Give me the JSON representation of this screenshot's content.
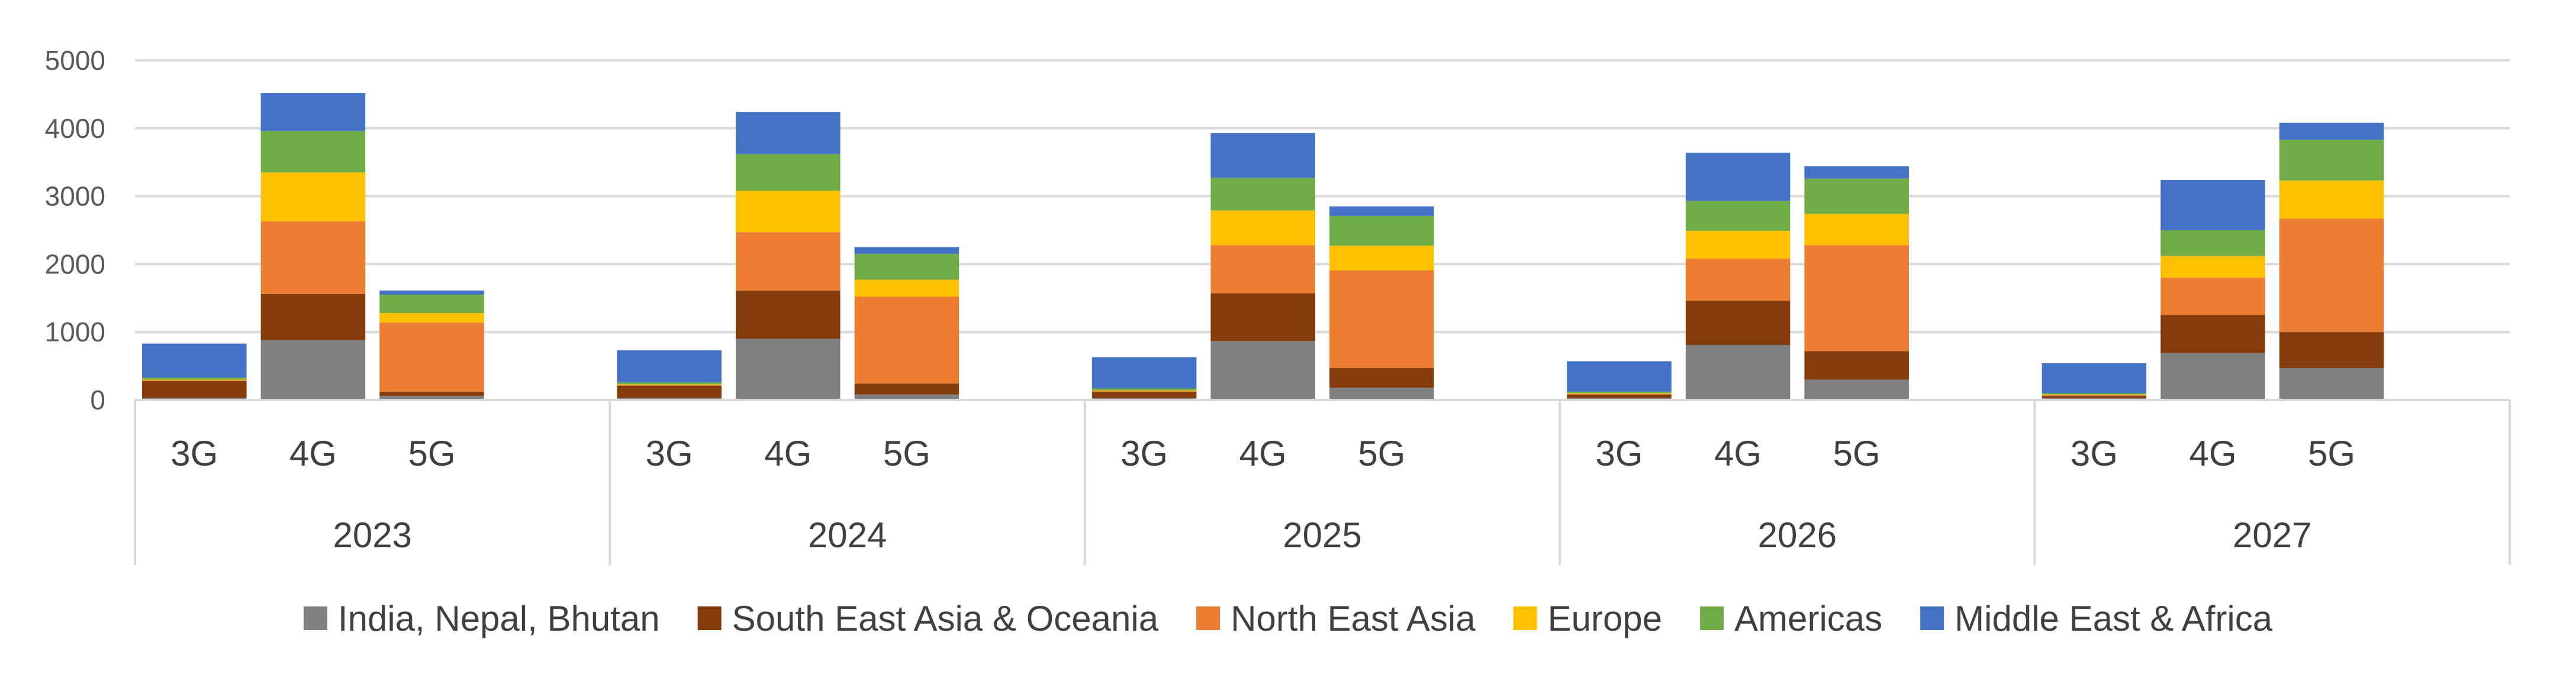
{
  "chart_data": {
    "type": "bar",
    "stacked": true,
    "title": "",
    "xlabel": "",
    "ylabel": "",
    "ylim": [
      0,
      5000
    ],
    "yticks": [
      0,
      1000,
      2000,
      3000,
      4000,
      5000
    ],
    "grid": true,
    "legend_position": "bottom",
    "groups": [
      "2023",
      "2024",
      "2025",
      "2026",
      "2027"
    ],
    "subcategories": [
      "3G",
      "4G",
      "5G"
    ],
    "categories": [
      "2023 3G",
      "2023 4G",
      "2023 5G",
      "2024 3G",
      "2024 4G",
      "2024 5G",
      "2025 3G",
      "2025 4G",
      "2025 5G",
      "2026 3G",
      "2026 4G",
      "2026 5G",
      "2027 3G",
      "2027 4G",
      "2027 5G"
    ],
    "series": [
      {
        "name": "India, Nepal, Bhutan",
        "color": "#808080",
        "values": [
          30,
          880,
          60,
          30,
          900,
          80,
          30,
          870,
          180,
          30,
          810,
          300,
          30,
          690,
          470
        ]
      },
      {
        "name": "South East Asia & Oceania",
        "color": "#843C0C",
        "values": [
          250,
          680,
          60,
          180,
          710,
          160,
          90,
          700,
          290,
          50,
          650,
          420,
          30,
          560,
          530
        ]
      },
      {
        "name": "North East Asia",
        "color": "#ED7D31",
        "values": [
          10,
          1070,
          1020,
          10,
          860,
          1280,
          10,
          710,
          1440,
          10,
          620,
          1560,
          10,
          550,
          1670
        ]
      },
      {
        "name": "Europe",
        "color": "#FFC000",
        "values": [
          10,
          720,
          140,
          10,
          610,
          250,
          10,
          510,
          360,
          10,
          410,
          460,
          10,
          320,
          560
        ]
      },
      {
        "name": "Americas",
        "color": "#70AD47",
        "values": [
          30,
          610,
          270,
          30,
          540,
          380,
          30,
          480,
          440,
          20,
          440,
          520,
          20,
          380,
          600
        ]
      },
      {
        "name": "Middle East & Africa",
        "color": "#4472C4",
        "values": [
          500,
          560,
          60,
          470,
          620,
          100,
          460,
          660,
          140,
          450,
          710,
          180,
          440,
          740,
          250
        ]
      }
    ]
  }
}
